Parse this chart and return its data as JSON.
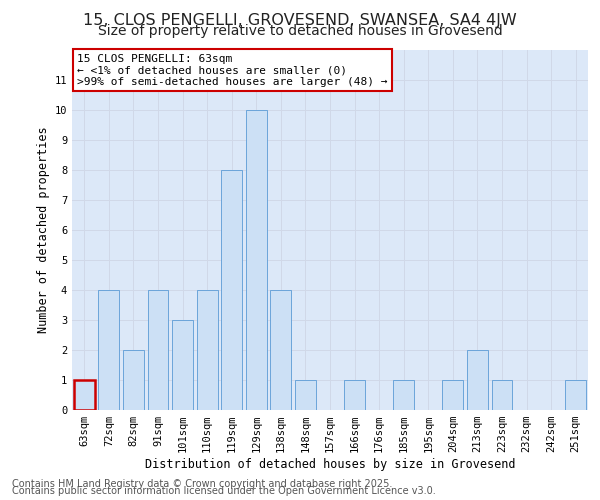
{
  "title1": "15, CLOS PENGELLI, GROVESEND, SWANSEA, SA4 4JW",
  "title2": "Size of property relative to detached houses in Grovesend",
  "xlabel": "Distribution of detached houses by size in Grovesend",
  "ylabel": "Number of detached properties",
  "categories": [
    "63sqm",
    "72sqm",
    "82sqm",
    "91sqm",
    "101sqm",
    "110sqm",
    "119sqm",
    "129sqm",
    "138sqm",
    "148sqm",
    "157sqm",
    "166sqm",
    "176sqm",
    "185sqm",
    "195sqm",
    "204sqm",
    "213sqm",
    "223sqm",
    "232sqm",
    "242sqm",
    "251sqm"
  ],
  "values": [
    1,
    4,
    2,
    4,
    3,
    4,
    8,
    10,
    4,
    1,
    0,
    1,
    0,
    1,
    0,
    1,
    2,
    1,
    0,
    0,
    1
  ],
  "bar_color": "#cce0f5",
  "bar_edge_color": "#5b9bd5",
  "highlight_index": 0,
  "highlight_color": "#cc0000",
  "annotation_text": "15 CLOS PENGELLI: 63sqm\n← <1% of detached houses are smaller (0)\n>99% of semi-detached houses are larger (48) →",
  "annotation_box_color": "#ffffff",
  "annotation_box_edge": "#cc0000",
  "ylim": [
    0,
    12
  ],
  "yticks": [
    0,
    1,
    2,
    3,
    4,
    5,
    6,
    7,
    8,
    9,
    10,
    11,
    12
  ],
  "grid_color": "#d0d8e8",
  "bg_color": "#dce8f8",
  "footer1": "Contains HM Land Registry data © Crown copyright and database right 2025.",
  "footer2": "Contains public sector information licensed under the Open Government Licence v3.0.",
  "title1_fontsize": 11.5,
  "title2_fontsize": 10,
  "axis_label_fontsize": 8.5,
  "tick_fontsize": 7.5,
  "annotation_fontsize": 8,
  "footer_fontsize": 7
}
